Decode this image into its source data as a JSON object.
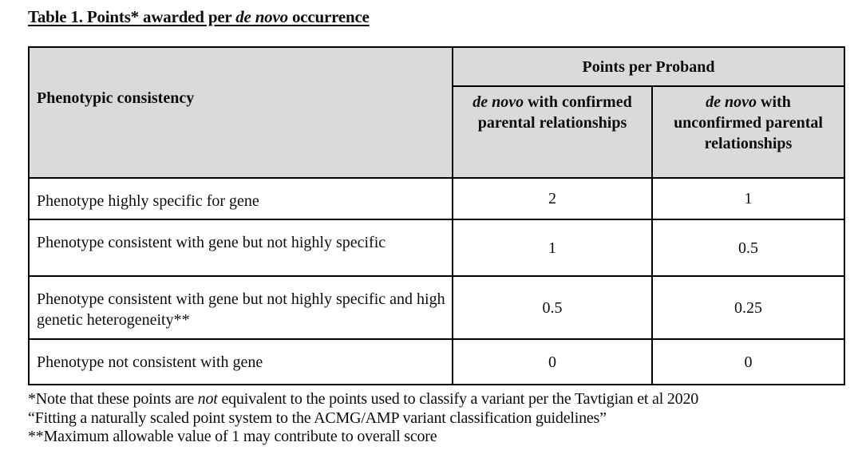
{
  "title": {
    "pre": "Table 1. Points* awarded per ",
    "italic": "de novo",
    "post": " occurrence"
  },
  "table": {
    "header": {
      "phenotypic_consistency": "Phenotypic consistency",
      "points_per_proband": "Points per Proband",
      "confirmed": {
        "italic": "de novo",
        "rest": " with confirmed parental relationships"
      },
      "unconfirmed": {
        "italic": "de novo",
        "rest": " with unconfirmed parental relationships"
      }
    },
    "rows": [
      {
        "label": "Phenotype highly specific for gene",
        "confirmed": "2",
        "unconfirmed": "1"
      },
      {
        "label": "Phenotype consistent with gene but not highly specific",
        "confirmed": "1",
        "unconfirmed": "0.5"
      },
      {
        "label": "Phenotype consistent with gene but not highly specific and high genetic heterogeneity**",
        "confirmed": "0.5",
        "unconfirmed": "0.25"
      },
      {
        "label": "Phenotype not consistent with gene",
        "confirmed": "0",
        "unconfirmed": "0"
      }
    ]
  },
  "footnotes": {
    "line1_pre": "*Note that these points are ",
    "line1_italic": "not",
    "line1_post": " equivalent to the points used to classify a variant per the Tavtigian et al 2020",
    "line2": "“Fitting a naturally scaled point system to the ACMG/AMP variant classification guidelines”",
    "line3": "**Maximum allowable value of 1 may contribute to overall score"
  },
  "colors": {
    "header_bg": "#dadada",
    "border": "#000000",
    "text": "#0d0d0d"
  }
}
